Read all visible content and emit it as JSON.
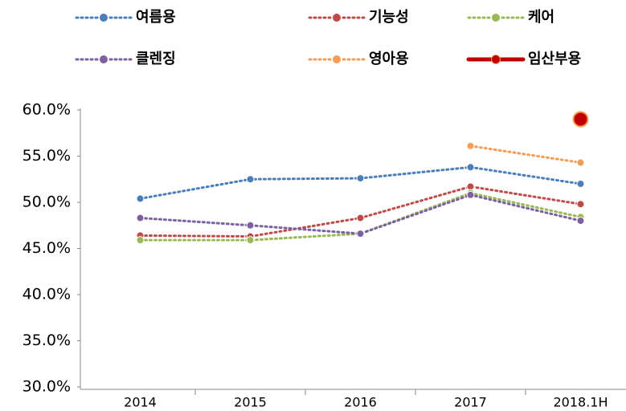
{
  "chart_data": {
    "type": "line",
    "categories": [
      "2014",
      "2015",
      "2016",
      "2017",
      "2018.1H"
    ],
    "series": [
      {
        "name": "여름용",
        "color": "#4a7ebb",
        "line_style": "dotted",
        "values": [
          50.4,
          52.5,
          52.6,
          53.8,
          52.0
        ]
      },
      {
        "name": "기능성",
        "color": "#be4b48",
        "line_style": "dotted",
        "values": [
          46.4,
          46.3,
          48.3,
          51.7,
          49.8
        ]
      },
      {
        "name": "케어",
        "color": "#98b954",
        "line_style": "dotted",
        "values": [
          45.9,
          45.9,
          46.6,
          51.0,
          48.4
        ]
      },
      {
        "name": "클렌징",
        "color": "#7d60a0",
        "line_style": "dotted",
        "values": [
          48.3,
          47.5,
          46.6,
          50.8,
          48.0
        ]
      },
      {
        "name": "영아용",
        "color": "#f59d56",
        "line_style": "dotted",
        "values": [
          null,
          null,
          null,
          56.1,
          54.3
        ]
      },
      {
        "name": "임산부용",
        "color": "#c00000",
        "line_style": "solid",
        "values": [
          null,
          null,
          null,
          null,
          59.0
        ]
      }
    ],
    "ylim": [
      30,
      60
    ],
    "yticks": [
      {
        "value": 30,
        "label": "30.0%"
      },
      {
        "value": 35,
        "label": "35.0%"
      },
      {
        "value": 40,
        "label": "40.0%"
      },
      {
        "value": 45,
        "label": "45.0%"
      },
      {
        "value": 50,
        "label": "50.0%"
      },
      {
        "value": 55,
        "label": "55.0%"
      },
      {
        "value": 60,
        "label": "60.0%"
      }
    ],
    "grid": false
  }
}
